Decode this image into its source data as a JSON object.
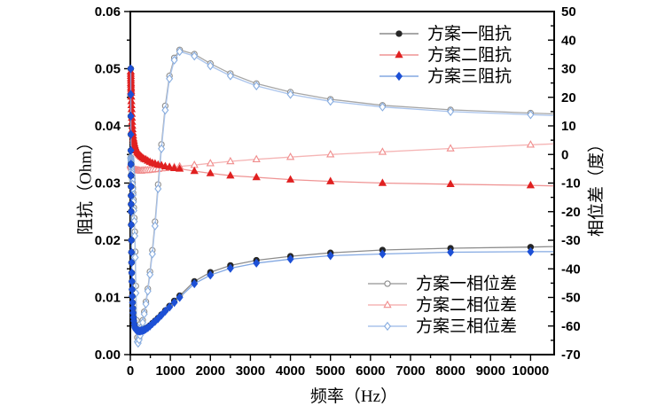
{
  "chart_data": {
    "type": "line",
    "title": "",
    "x": {
      "label": "频率（Hz）",
      "min": 0,
      "max": 10570,
      "tick_values": [
        0,
        1000,
        2000,
        3000,
        4000,
        5000,
        6000,
        7000,
        8000,
        9000,
        10000
      ],
      "tick_labels": [
        "0",
        "1000",
        "2000",
        "3000",
        "4000",
        "5000",
        "6000",
        "7000",
        "8000",
        "9000",
        "10000"
      ],
      "minor_step": 500
    },
    "y_left": {
      "label": "阻抗（Ohm）",
      "min": 0,
      "max": 0.06,
      "tick_values": [
        0,
        0.01,
        0.02,
        0.03,
        0.04,
        0.05,
        0.06
      ],
      "tick_labels": [
        "0.00",
        "0.01",
        "0.02",
        "0.03",
        "0.04",
        "0.05",
        "0.06"
      ],
      "minor_step": 0.005
    },
    "y_right": {
      "label": "相位差（度）",
      "min": -70,
      "max": 50,
      "tick_values": [
        -70,
        -60,
        -50,
        -40,
        -30,
        -20,
        -10,
        0,
        10,
        20,
        30,
        40,
        50
      ],
      "tick_labels": [
        "-70",
        "-60",
        "-50",
        "-40",
        "-30",
        "-20",
        "-10",
        "0",
        "10",
        "20",
        "30",
        "40",
        "50"
      ],
      "minor_step": 5
    },
    "grid": "off",
    "frame": {
      "stroke": "#000000"
    },
    "frequencies": [
      10,
      11,
      12,
      13,
      14,
      15,
      16,
      17,
      18,
      19,
      20,
      22,
      25,
      28,
      31,
      35,
      39,
      44,
      49,
      55,
      62,
      69,
      78,
      87,
      98,
      110,
      123,
      138,
      155,
      174,
      195,
      219,
      245,
      275,
      309,
      347,
      389,
      437,
      490,
      550,
      617,
      693,
      777,
      872,
      978,
      1098,
      1232,
      1600,
      2000,
      2500,
      3150,
      4000,
      5000,
      6300,
      8000,
      10000,
      10570
    ],
    "series": [
      {
        "id": "phase-scheme-1",
        "name": "方案一相位差",
        "axis": "right",
        "marker": "circle",
        "open": true,
        "line_color": "#a6a6a6",
        "marker_color": "#8c8c8c",
        "values": [
          -1.0,
          -1.1,
          -1.2,
          -1.3,
          -1.5,
          -1.6,
          -1.8,
          -2.0,
          -2.1,
          -2.3,
          -2.5,
          -2.9,
          -3.4,
          -4.0,
          -4.6,
          -5.4,
          -6.3,
          -7.4,
          -8.5,
          -9.9,
          -11.6,
          -13.4,
          -15.8,
          -18.6,
          -22.2,
          -27.0,
          -34.0,
          -46.0,
          -58.0,
          -64.0,
          -65.2,
          -64.0,
          -62.5,
          -60.5,
          -58.0,
          -55.0,
          -51.5,
          -47.0,
          -41.0,
          -33.5,
          -23.5,
          -10.5,
          3.5,
          17.0,
          27.5,
          33.8,
          36.6,
          35.1,
          31.8,
          28.3,
          24.8,
          21.8,
          19.3,
          17.2,
          15.6,
          14.5,
          14.2
        ]
      },
      {
        "id": "phase-scheme-2",
        "name": "方案二相位差",
        "axis": "right",
        "marker": "triangle",
        "open": true,
        "line_color": "#f5b5b5",
        "marker_color": "#f08c8c",
        "values": [
          -3.4,
          -3.5,
          -3.5,
          -3.6,
          -3.6,
          -3.7,
          -3.7,
          -3.8,
          -3.8,
          -3.9,
          -3.9,
          -4.0,
          -4.1,
          -4.2,
          -4.3,
          -4.4,
          -4.5,
          -4.6,
          -4.7,
          -4.8,
          -4.9,
          -5.0,
          -5.1,
          -5.2,
          -5.3,
          -5.4,
          -5.4,
          -5.5,
          -5.5,
          -5.6,
          -5.6,
          -5.6,
          -5.7,
          -5.7,
          -5.6,
          -5.6,
          -5.5,
          -5.5,
          -5.4,
          -5.3,
          -5.2,
          -5.1,
          -4.9,
          -4.8,
          -4.6,
          -4.4,
          -4.2,
          -3.7,
          -3.1,
          -2.4,
          -1.7,
          -0.9,
          0.0,
          0.9,
          2.1,
          3.4,
          3.7
        ]
      },
      {
        "id": "phase-scheme-3",
        "name": "方案三相位差",
        "axis": "right",
        "marker": "diamond",
        "open": true,
        "line_color": "#aac4ec",
        "marker_color": "#86ace0",
        "values": [
          -1.1,
          -1.2,
          -1.3,
          -1.4,
          -1.6,
          -1.7,
          -1.9,
          -2.1,
          -2.2,
          -2.4,
          -2.6,
          -3.0,
          -3.6,
          -4.2,
          -4.8,
          -5.7,
          -6.6,
          -7.7,
          -8.9,
          -10.4,
          -12.1,
          -14.1,
          -16.6,
          -19.6,
          -23.4,
          -28.5,
          -36.0,
          -48.5,
          -60.0,
          -65.5,
          -66.0,
          -64.8,
          -63.3,
          -61.3,
          -58.8,
          -55.8,
          -52.3,
          -47.8,
          -42.0,
          -34.8,
          -25.0,
          -12.0,
          2.0,
          15.5,
          26.5,
          33.0,
          36.0,
          34.4,
          31.0,
          27.5,
          24.0,
          21.0,
          18.6,
          16.6,
          15.0,
          13.9,
          13.6
        ]
      },
      {
        "id": "impedance-scheme-1",
        "name": "方案一阻抗",
        "axis": "left",
        "marker": "circle",
        "open": false,
        "line_color": "#8c8c8c",
        "marker_color": "#262626",
        "values": [
          0.05,
          0.0455,
          0.0417,
          0.0385,
          0.0357,
          0.0333,
          0.0313,
          0.0294,
          0.0278,
          0.0263,
          0.025,
          0.0227,
          0.02,
          0.0179,
          0.0161,
          0.0143,
          0.0128,
          0.0114,
          0.0102,
          0.0091,
          0.0081,
          0.0073,
          0.0065,
          0.0059,
          0.0053,
          0.0049,
          0.0047,
          0.0045,
          0.0044,
          0.0043,
          0.0043,
          0.0042,
          0.0042,
          0.0043,
          0.0043,
          0.0044,
          0.0046,
          0.0048,
          0.0051,
          0.0055,
          0.0059,
          0.0064,
          0.007,
          0.0077,
          0.0085,
          0.0094,
          0.0103,
          0.0128,
          0.0144,
          0.0156,
          0.0165,
          0.0172,
          0.0178,
          0.0183,
          0.0186,
          0.0188,
          0.0189
        ]
      },
      {
        "id": "impedance-scheme-2",
        "name": "方案二阻抗",
        "axis": "left",
        "marker": "triangle",
        "open": false,
        "line_color": "#ef9494",
        "marker_color": "#e02020",
        "values": [
          0.0495,
          0.0491,
          0.0487,
          0.0483,
          0.0479,
          0.0475,
          0.0472,
          0.0468,
          0.0465,
          0.0461,
          0.0458,
          0.0451,
          0.0443,
          0.0436,
          0.0429,
          0.0421,
          0.0414,
          0.0407,
          0.04,
          0.0394,
          0.0388,
          0.0383,
          0.0378,
          0.0374,
          0.037,
          0.0366,
          0.0363,
          0.036,
          0.0357,
          0.0354,
          0.0352,
          0.035,
          0.0348,
          0.0346,
          0.0344,
          0.0342,
          0.0341,
          0.0339,
          0.0337,
          0.0335,
          0.0334,
          0.0332,
          0.0331,
          0.0329,
          0.0328,
          0.0326,
          0.0325,
          0.0321,
          0.0317,
          0.0313,
          0.031,
          0.0306,
          0.0303,
          0.03,
          0.0298,
          0.0296,
          0.0295
        ]
      },
      {
        "id": "impedance-scheme-3",
        "name": "方案三阻抗",
        "axis": "left",
        "marker": "diamond",
        "open": false,
        "line_color": "#84a9e2",
        "marker_color": "#1d50d6",
        "values": [
          0.05,
          0.0455,
          0.0417,
          0.0385,
          0.0357,
          0.0333,
          0.0313,
          0.0294,
          0.0278,
          0.0263,
          0.025,
          0.0227,
          0.02,
          0.0179,
          0.0161,
          0.0143,
          0.0128,
          0.0114,
          0.0102,
          0.0091,
          0.0081,
          0.0073,
          0.0065,
          0.0059,
          0.0053,
          0.0048,
          0.0046,
          0.0044,
          0.0043,
          0.0042,
          0.0042,
          0.0041,
          0.0041,
          0.0042,
          0.0042,
          0.0043,
          0.0045,
          0.0047,
          0.005,
          0.0054,
          0.0058,
          0.0063,
          0.0069,
          0.0076,
          0.0083,
          0.0091,
          0.01,
          0.0124,
          0.0139,
          0.0151,
          0.016,
          0.0167,
          0.0173,
          0.0176,
          0.0179,
          0.018,
          0.018
        ]
      }
    ],
    "legend_impedance_position": "top-right-inside",
    "legend_phase_position": "bottom-right-inside"
  }
}
